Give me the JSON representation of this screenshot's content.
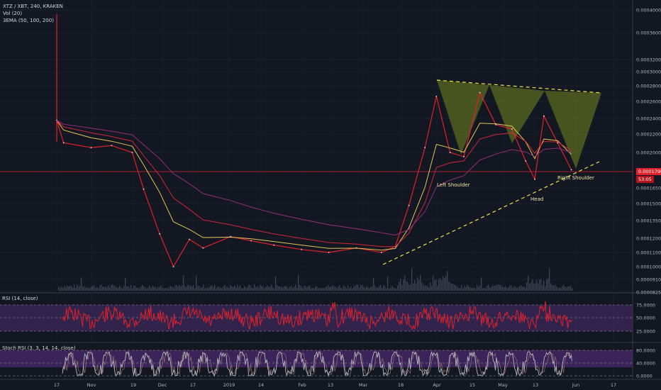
{
  "header": {
    "symbol_line": "XTZ / XBT, 240, KRAKEN",
    "volume_label": "Vol (20)",
    "ema_label": "3EMA (50, 100, 200)"
  },
  "panes": {
    "rsi_title": "RSI (14, close)",
    "stoch_title": "Stoch RSI (3, 3, 14, 14, close)"
  },
  "colors": {
    "background": "#131722",
    "price_line": "#e0212b",
    "ema50": "#e3c552",
    "ema100": "#d1263a",
    "ema200": "#8e2f7d",
    "pattern_fill": "#5a6a1f",
    "trendline": "#f2e34c",
    "rsi_band": "#3f2a5e",
    "stoch_band": "#4a2a6e"
  },
  "chart_data": {
    "type": "line",
    "price_axis_labels": [
      "0.0004000",
      "0.0003600",
      "0.0003200",
      "0.0003000",
      "0.0002800",
      "0.0002600",
      "0.0002400",
      "0.0002200",
      "0.0002000",
      "0.0001650",
      "0.0001500",
      "0.0001350",
      "0.0001200",
      "0.0001100",
      "0.0001000",
      "0.0000910",
      "0.0000825"
    ],
    "current_price_tag": "0.0001798",
    "countdown_tag": "53:05",
    "time_labels": [
      "17",
      "Nov",
      "19",
      "Dec",
      "17",
      "2019",
      "14",
      "Feb",
      "13",
      "Mar",
      "18",
      "Apr",
      "15",
      "May",
      "13",
      "Jun",
      "17"
    ],
    "price_series": [
      [
        "Oct 17",
        0.000235
      ],
      [
        "Oct 20",
        0.00021
      ],
      [
        "Nov 1",
        0.000205
      ],
      [
        "Nov 10",
        0.000207
      ],
      [
        "Nov 19",
        0.0002
      ],
      [
        "Nov 24",
        0.00016
      ],
      [
        "Dec 1",
        0.000122
      ],
      [
        "Dec 7",
        0.0001
      ],
      [
        "Dec 14",
        0.000118
      ],
      [
        "Dec 20",
        0.000112
      ],
      [
        "Jan 1",
        0.00012
      ],
      [
        "Jan 10",
        0.000117
      ],
      [
        "Jan 20",
        0.000114
      ],
      [
        "Feb 1",
        0.000111
      ],
      [
        "Feb 13",
        0.000109
      ],
      [
        "Feb 25",
        0.000112
      ],
      [
        "Mar 8",
        0.000109
      ],
      [
        "Mar 14",
        0.000113
      ],
      [
        "Mar 20",
        0.000145
      ],
      [
        "Mar 27",
        0.000205
      ],
      [
        "Apr 1",
        0.000265
      ],
      [
        "Apr 7",
        0.0002
      ],
      [
        "Apr 13",
        0.000195
      ],
      [
        "Apr 20",
        0.00027
      ],
      [
        "Apr 27",
        0.00023
      ],
      [
        "May 4",
        0.000225
      ],
      [
        "May 10",
        0.00019
      ],
      [
        "May 14",
        0.00017
      ],
      [
        "May 18",
        0.00024
      ],
      [
        "May 24",
        0.00021
      ],
      [
        "May 30",
        0.00018
      ]
    ],
    "rsi": {
      "levels": [
        "75.0000",
        "50.0000",
        "25.0000"
      ],
      "band": [
        30,
        70
      ]
    },
    "stoch_rsi": {
      "levels": [
        "80.0000",
        "40.0000",
        "0.0000"
      ],
      "band": [
        20,
        80
      ]
    },
    "annotations": {
      "left_shoulder": "Left Shoulder",
      "head": "Head",
      "right_shoulder": "Right Shoulder"
    }
  }
}
